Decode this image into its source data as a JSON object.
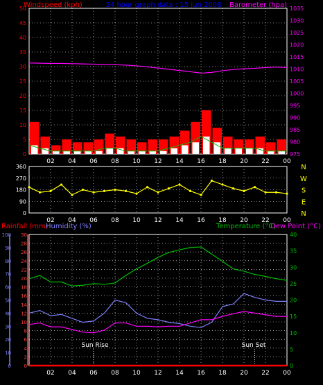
{
  "colors": {
    "wind_avg": "#00c000",
    "wind_gust": "#ff0000",
    "wind_calm": "#ffffff",
    "barometer": "#ff00ff",
    "direction": "#ffff00",
    "humidity": "#8080ff",
    "temperature": "#00c000",
    "dew_point": "#ff00ff",
    "rainfall": "#ff0000",
    "grid": "#ffffff",
    "title": "#0000ff",
    "rain_axis": "#ff4040",
    "hum_axis": "#8080ff",
    "temp_axis": "#00c000"
  },
  "header": {
    "windspeed_label": "Windspeed (kph)",
    "title": "24 hour graph data : 15 Jun 2008",
    "barometer_label": "Barometer (hpa)"
  },
  "bottom_header": {
    "rainfall_label": "Rainfall (mm)",
    "humidity_label": "Humidity (%)",
    "temperature_label": "Temperature (°C)",
    "dewpoint_label": "Dew Point (°C)"
  },
  "x_ticks": [
    "02",
    "04",
    "06",
    "08",
    "10",
    "12",
    "14",
    "16",
    "18",
    "20",
    "22",
    "00"
  ],
  "annotations": {
    "sun_rise": "Sun Rise",
    "sun_set": "Sun Set"
  },
  "chart_data": [
    {
      "type": "line",
      "name": "wind-barometer",
      "x_hours": [
        0,
        1,
        2,
        3,
        4,
        5,
        6,
        7,
        8,
        9,
        10,
        11,
        12,
        13,
        14,
        15,
        16,
        17,
        18,
        19,
        20,
        21,
        22,
        23,
        24
      ],
      "wind_ticks": [
        0,
        5,
        10,
        15,
        20,
        25,
        30,
        35,
        40,
        45,
        50
      ],
      "wind_ylim": [
        0,
        50
      ],
      "baro_ticks": [
        975,
        980,
        985,
        990,
        995,
        1000,
        1005,
        1010,
        1015,
        1020,
        1025,
        1030,
        1035
      ],
      "baro_ylim": [
        975,
        1035
      ],
      "series": [
        {
          "name": "Barometer",
          "values": [
            1012.5,
            1012.4,
            1012.3,
            1012.3,
            1012.2,
            1012.1,
            1012.0,
            1011.9,
            1011.8,
            1011.6,
            1011.3,
            1010.9,
            1010.4,
            1009.9,
            1009.4,
            1008.9,
            1008.3,
            1008.6,
            1009.3,
            1009.8,
            1010.1,
            1010.3,
            1010.6,
            1010.8,
            1010.6
          ]
        },
        {
          "name": "Gust",
          "values": [
            11,
            6,
            3,
            5,
            4,
            4,
            5,
            7,
            6,
            5,
            4,
            5,
            5,
            6,
            8,
            11,
            15,
            9,
            6,
            5,
            5,
            6,
            4,
            5,
            4
          ]
        },
        {
          "name": "Average",
          "values": [
            3,
            2,
            1,
            1,
            1,
            1,
            1,
            2,
            2,
            1,
            1,
            1,
            1,
            2,
            3,
            4,
            6,
            4,
            2,
            2,
            2,
            2,
            1,
            1,
            1
          ]
        }
      ]
    },
    {
      "type": "scatter",
      "name": "wind-direction",
      "x_hours": [
        0,
        1,
        2,
        3,
        4,
        5,
        6,
        7,
        8,
        9,
        10,
        11,
        12,
        13,
        14,
        15,
        16,
        17,
        18,
        19,
        20,
        21,
        22,
        23,
        24
      ],
      "y_ticks": [
        0,
        90,
        180,
        270,
        360
      ],
      "ylim": [
        0,
        360
      ],
      "compass_labels": [
        "N",
        "W",
        "S",
        "E",
        "N"
      ],
      "values": [
        200,
        160,
        170,
        220,
        140,
        180,
        160,
        170,
        180,
        170,
        150,
        200,
        160,
        190,
        220,
        170,
        140,
        250,
        220,
        190,
        170,
        200,
        160,
        160,
        150
      ]
    },
    {
      "type": "line",
      "name": "temp-humidity",
      "x_hours": [
        0,
        1,
        2,
        3,
        4,
        5,
        6,
        7,
        8,
        9,
        10,
        11,
        12,
        13,
        14,
        15,
        16,
        17,
        18,
        19,
        20,
        21,
        22,
        23,
        24
      ],
      "rain_ticks": [
        0,
        2,
        4,
        6,
        8,
        10,
        12,
        14,
        16,
        18,
        20,
        22,
        24,
        26,
        28,
        30
      ],
      "rain_ylim": [
        0,
        30
      ],
      "hum_ticks": [
        0,
        10,
        20,
        30,
        40,
        50,
        60,
        70,
        80,
        90,
        100
      ],
      "hum_ylim": [
        0,
        100
      ],
      "temp_ticks": [
        0,
        5,
        10,
        15,
        20,
        25,
        30,
        35,
        40
      ],
      "temp_ylim": [
        0,
        40
      ],
      "series": [
        {
          "name": "Temperature",
          "values": [
            26.5,
            27.5,
            25.5,
            25.5,
            24.3,
            24.5,
            25.0,
            24.8,
            25.2,
            27.5,
            29.5,
            31.2,
            33.0,
            34.5,
            35.3,
            36.0,
            36.2,
            34.0,
            31.8,
            29.5,
            28.8,
            27.8,
            27.2,
            26.5,
            26.0
          ]
        },
        {
          "name": "Humidity",
          "values": [
            40,
            42,
            38,
            39,
            36,
            33,
            34,
            40,
            50,
            48,
            40,
            36,
            35,
            33,
            32,
            30,
            29,
            33,
            45,
            47,
            55,
            52,
            50,
            49,
            49
          ]
        },
        {
          "name": "Dew Point",
          "values": [
            12.5,
            13.0,
            11.8,
            11.8,
            11.0,
            10.2,
            10.0,
            10.8,
            13.0,
            13.0,
            12.0,
            12.0,
            11.8,
            12.0,
            12.0,
            13.0,
            14.0,
            14.0,
            15.0,
            15.8,
            16.5,
            16.0,
            15.5,
            15.0,
            15.0
          ]
        },
        {
          "name": "Rainfall",
          "values": [
            0,
            0,
            0,
            0,
            0,
            0,
            0,
            0,
            0,
            0,
            0,
            0,
            0,
            0,
            0,
            0,
            0,
            0,
            0,
            0,
            0,
            0,
            0,
            0,
            0
          ]
        }
      ]
    }
  ]
}
